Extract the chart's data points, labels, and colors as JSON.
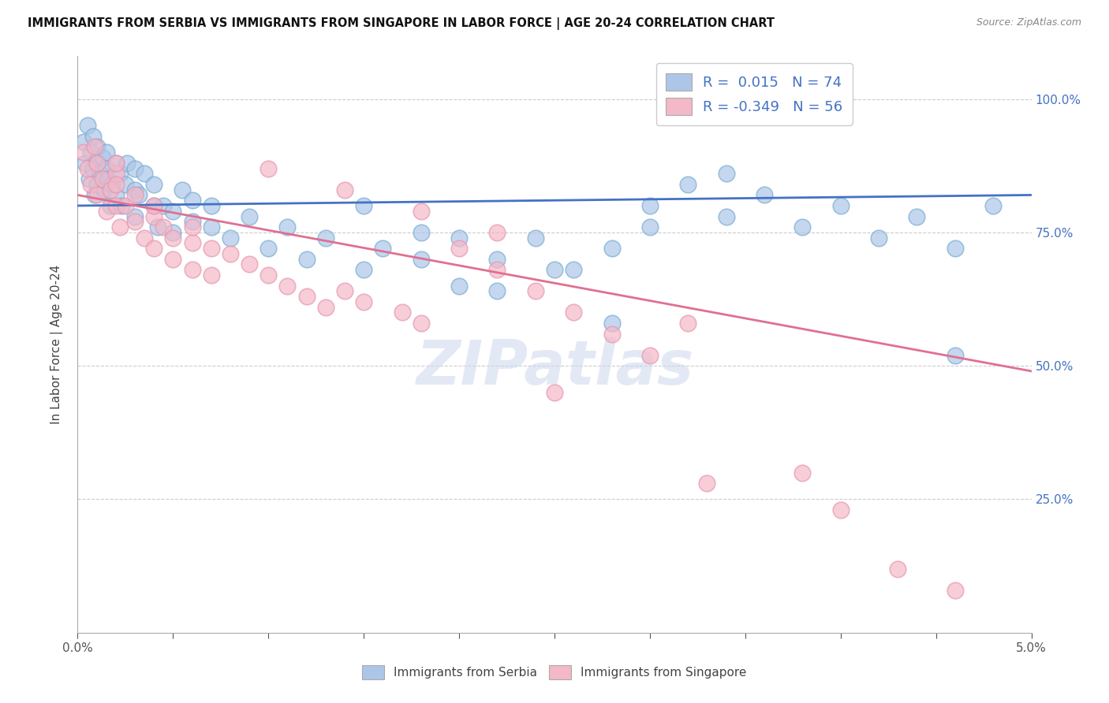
{
  "title": "IMMIGRANTS FROM SERBIA VS IMMIGRANTS FROM SINGAPORE IN LABOR FORCE | AGE 20-24 CORRELATION CHART",
  "source": "Source: ZipAtlas.com",
  "ylabel": "In Labor Force | Age 20-24",
  "y_ticks": [
    0.0,
    0.25,
    0.5,
    0.75,
    1.0
  ],
  "y_tick_labels": [
    "",
    "25.0%",
    "50.0%",
    "75.0%",
    "100.0%"
  ],
  "x_min": 0.0,
  "x_max": 0.05,
  "y_min": 0.0,
  "y_max": 1.08,
  "serbia_color": "#adc6e8",
  "singapore_color": "#f4b8c8",
  "serbia_edge_color": "#7bafd4",
  "singapore_edge_color": "#e898b0",
  "serbia_line_color": "#4472c4",
  "singapore_line_color": "#e07090",
  "serbia_R": 0.015,
  "serbia_N": 74,
  "singapore_R": -0.349,
  "singapore_N": 56,
  "watermark": "ZIPatlas",
  "legend_label_serbia": "Immigrants from Serbia",
  "legend_label_singapore": "Immigrants from Singapore",
  "serbia_x": [
    0.0003,
    0.0004,
    0.0005,
    0.0006,
    0.0007,
    0.0008,
    0.0008,
    0.0009,
    0.001,
    0.001,
    0.001,
    0.0012,
    0.0013,
    0.0014,
    0.0015,
    0.0015,
    0.0016,
    0.0017,
    0.0018,
    0.002,
    0.002,
    0.0022,
    0.0023,
    0.0025,
    0.0026,
    0.003,
    0.003,
    0.003,
    0.0032,
    0.0035,
    0.004,
    0.004,
    0.0042,
    0.0045,
    0.005,
    0.005,
    0.0055,
    0.006,
    0.006,
    0.007,
    0.007,
    0.008,
    0.009,
    0.01,
    0.011,
    0.012,
    0.013,
    0.015,
    0.016,
    0.018,
    0.02,
    0.022,
    0.024,
    0.026,
    0.028,
    0.03,
    0.032,
    0.034,
    0.036,
    0.038,
    0.04,
    0.042,
    0.044,
    0.046,
    0.034,
    0.02,
    0.015,
    0.025,
    0.03,
    0.018,
    0.022,
    0.028,
    0.046,
    0.048
  ],
  "serbia_y": [
    0.92,
    0.88,
    0.95,
    0.85,
    0.9,
    0.93,
    0.87,
    0.82,
    0.88,
    0.91,
    0.84,
    0.86,
    0.89,
    0.83,
    0.87,
    0.9,
    0.85,
    0.8,
    0.84,
    0.88,
    0.82,
    0.86,
    0.8,
    0.84,
    0.88,
    0.83,
    0.87,
    0.78,
    0.82,
    0.86,
    0.8,
    0.84,
    0.76,
    0.8,
    0.75,
    0.79,
    0.83,
    0.77,
    0.81,
    0.76,
    0.8,
    0.74,
    0.78,
    0.72,
    0.76,
    0.7,
    0.74,
    0.68,
    0.72,
    0.75,
    0.65,
    0.7,
    0.74,
    0.68,
    0.72,
    0.8,
    0.84,
    0.78,
    0.82,
    0.76,
    0.8,
    0.74,
    0.78,
    0.72,
    0.86,
    0.74,
    0.8,
    0.68,
    0.76,
    0.7,
    0.64,
    0.58,
    0.52,
    0.8
  ],
  "singapore_x": [
    0.0003,
    0.0005,
    0.0007,
    0.0009,
    0.001,
    0.001,
    0.0013,
    0.0015,
    0.0017,
    0.002,
    0.002,
    0.0022,
    0.0025,
    0.003,
    0.003,
    0.0035,
    0.004,
    0.004,
    0.0045,
    0.005,
    0.005,
    0.006,
    0.006,
    0.007,
    0.007,
    0.008,
    0.009,
    0.01,
    0.011,
    0.012,
    0.013,
    0.014,
    0.015,
    0.017,
    0.018,
    0.02,
    0.022,
    0.024,
    0.026,
    0.028,
    0.03,
    0.032,
    0.022,
    0.018,
    0.014,
    0.01,
    0.006,
    0.004,
    0.002,
    0.002,
    0.025,
    0.033,
    0.04,
    0.043,
    0.046,
    0.038
  ],
  "singapore_y": [
    0.9,
    0.87,
    0.84,
    0.91,
    0.88,
    0.82,
    0.85,
    0.79,
    0.83,
    0.86,
    0.8,
    0.76,
    0.8,
    0.77,
    0.82,
    0.74,
    0.78,
    0.72,
    0.76,
    0.74,
    0.7,
    0.73,
    0.68,
    0.72,
    0.67,
    0.71,
    0.69,
    0.67,
    0.65,
    0.63,
    0.61,
    0.64,
    0.62,
    0.6,
    0.58,
    0.72,
    0.68,
    0.64,
    0.6,
    0.56,
    0.52,
    0.58,
    0.75,
    0.79,
    0.83,
    0.87,
    0.76,
    0.8,
    0.84,
    0.88,
    0.45,
    0.28,
    0.23,
    0.12,
    0.08,
    0.3
  ],
  "serbia_trend_x": [
    0.0,
    0.05
  ],
  "serbia_trend_y": [
    0.8,
    0.82
  ],
  "singapore_trend_x": [
    0.0,
    0.05
  ],
  "singapore_trend_y": [
    0.82,
    0.49
  ]
}
